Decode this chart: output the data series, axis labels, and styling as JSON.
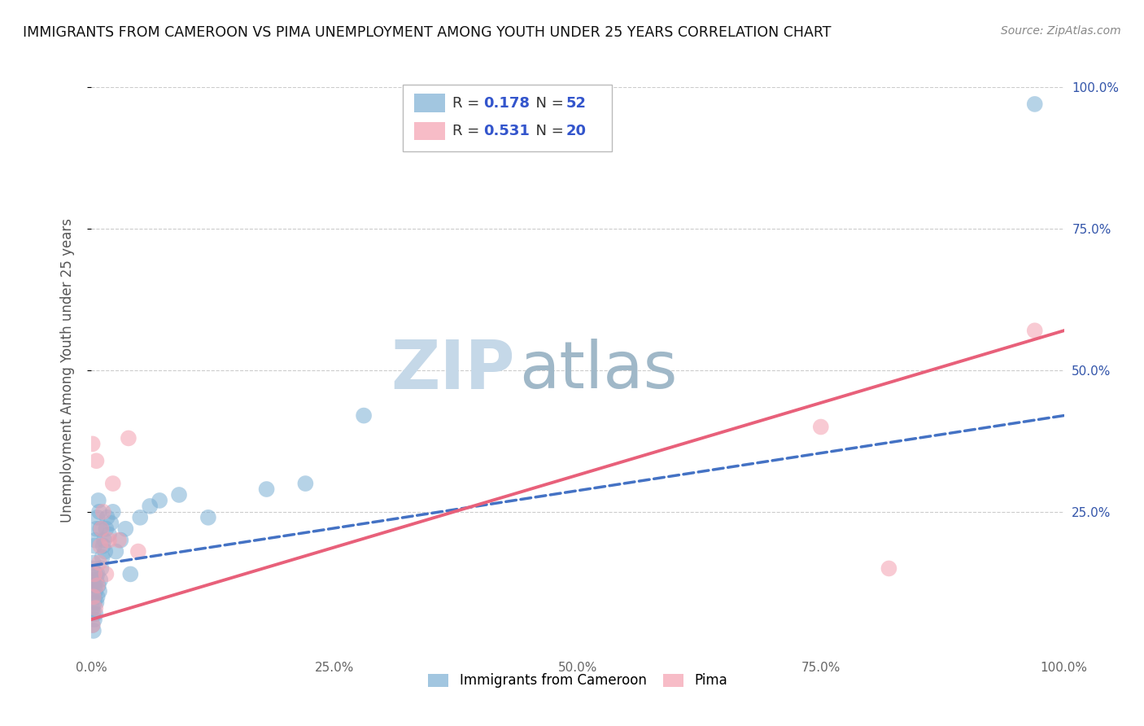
{
  "title": "IMMIGRANTS FROM CAMEROON VS PIMA UNEMPLOYMENT AMONG YOUTH UNDER 25 YEARS CORRELATION CHART",
  "source": "Source: ZipAtlas.com",
  "ylabel": "Unemployment Among Youth under 25 years",
  "xlim": [
    0,
    1.0
  ],
  "ylim": [
    0,
    1.0
  ],
  "xtick_positions": [
    0.0,
    0.25,
    0.5,
    0.75,
    1.0
  ],
  "xtick_labels": [
    "0.0%",
    "25.0%",
    "50.0%",
    "75.0%",
    "100.0%"
  ],
  "ytick_positions": [
    0.25,
    0.5,
    0.75,
    1.0
  ],
  "ytick_labels": [
    "25.0%",
    "50.0%",
    "75.0%",
    "100.0%"
  ],
  "legend_r1": "0.178",
  "legend_n1": "52",
  "legend_r2": "0.531",
  "legend_n2": "20",
  "blue_color": "#7BAFD4",
  "pink_color": "#F4A0B0",
  "blue_line_color": "#4472C4",
  "pink_line_color": "#E8607A",
  "watermark_zip": "ZIP",
  "watermark_atlas": "atlas",
  "watermark_color": "#C5D8E8",
  "watermark_atlas_color": "#A0B8C8",
  "blue_scatter_x": [
    0.001,
    0.001,
    0.001,
    0.001,
    0.002,
    0.002,
    0.002,
    0.002,
    0.002,
    0.003,
    0.003,
    0.003,
    0.003,
    0.004,
    0.004,
    0.004,
    0.004,
    0.005,
    0.005,
    0.005,
    0.006,
    0.006,
    0.006,
    0.007,
    0.007,
    0.008,
    0.008,
    0.009,
    0.009,
    0.01,
    0.011,
    0.012,
    0.013,
    0.014,
    0.015,
    0.016,
    0.018,
    0.02,
    0.022,
    0.025,
    0.03,
    0.035,
    0.04,
    0.05,
    0.06,
    0.07,
    0.09,
    0.12,
    0.18,
    0.22,
    0.28,
    0.97
  ],
  "blue_scatter_y": [
    0.05,
    0.08,
    0.12,
    0.15,
    0.04,
    0.07,
    0.1,
    0.13,
    0.16,
    0.06,
    0.09,
    0.12,
    0.19,
    0.07,
    0.11,
    0.14,
    0.2,
    0.09,
    0.13,
    0.22,
    0.1,
    0.14,
    0.24,
    0.12,
    0.27,
    0.11,
    0.25,
    0.13,
    0.22,
    0.15,
    0.17,
    0.19,
    0.2,
    0.18,
    0.22,
    0.24,
    0.21,
    0.23,
    0.25,
    0.18,
    0.2,
    0.22,
    0.14,
    0.24,
    0.26,
    0.27,
    0.28,
    0.24,
    0.29,
    0.3,
    0.42,
    0.97
  ],
  "pink_scatter_x": [
    0.001,
    0.001,
    0.002,
    0.003,
    0.004,
    0.005,
    0.006,
    0.008,
    0.009,
    0.01,
    0.012,
    0.015,
    0.018,
    0.022,
    0.028,
    0.038,
    0.048,
    0.75,
    0.82,
    0.97
  ],
  "pink_scatter_y": [
    0.05,
    0.37,
    0.1,
    0.14,
    0.08,
    0.34,
    0.12,
    0.16,
    0.19,
    0.22,
    0.25,
    0.14,
    0.2,
    0.3,
    0.2,
    0.38,
    0.18,
    0.4,
    0.15,
    0.57
  ],
  "blue_line_x0": 0.0,
  "blue_line_x1": 1.0,
  "blue_line_y0": 0.155,
  "blue_line_y1": 0.42,
  "pink_line_x0": 0.0,
  "pink_line_x1": 1.0,
  "pink_line_y0": 0.06,
  "pink_line_y1": 0.57
}
